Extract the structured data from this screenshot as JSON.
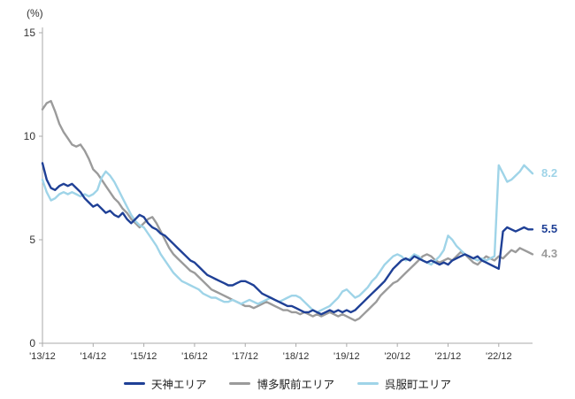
{
  "chart_data": {
    "type": "line",
    "title": "",
    "ylabel": "(%)",
    "ylim": [
      0,
      15
    ],
    "y_ticks": [
      0,
      5,
      10,
      15
    ],
    "x_tick_labels": [
      "'13/12",
      "'14/12",
      "'15/12",
      "'16/12",
      "'17/12",
      "'18/12",
      "'19/12",
      "'20/12",
      "'21/12",
      "'22/12"
    ],
    "x_unit": "month",
    "x_start": "2013/12",
    "tick_every": 12,
    "grid": false,
    "legend_position": "bottom",
    "series": [
      {
        "name": "天神エリア",
        "color": "#1f4096",
        "end_label": "5.5",
        "values": [
          8.7,
          7.9,
          7.5,
          7.4,
          7.6,
          7.7,
          7.6,
          7.7,
          7.5,
          7.3,
          7.0,
          6.8,
          6.6,
          6.7,
          6.5,
          6.3,
          6.4,
          6.2,
          6.1,
          6.3,
          6.0,
          5.8,
          6.0,
          6.2,
          6.1,
          5.8,
          5.6,
          5.5,
          5.3,
          5.2,
          5.0,
          4.8,
          4.6,
          4.4,
          4.2,
          4.0,
          3.9,
          3.7,
          3.5,
          3.3,
          3.2,
          3.1,
          3.0,
          2.9,
          2.8,
          2.8,
          2.9,
          3.0,
          3.0,
          2.9,
          2.8,
          2.6,
          2.4,
          2.3,
          2.2,
          2.1,
          2.0,
          1.9,
          1.8,
          1.8,
          1.7,
          1.6,
          1.5,
          1.5,
          1.6,
          1.5,
          1.4,
          1.5,
          1.6,
          1.5,
          1.6,
          1.5,
          1.6,
          1.5,
          1.6,
          1.8,
          2.0,
          2.2,
          2.4,
          2.6,
          2.8,
          3.0,
          3.3,
          3.6,
          3.8,
          4.0,
          4.1,
          4.0,
          4.2,
          4.1,
          4.0,
          3.9,
          4.0,
          3.9,
          3.8,
          3.9,
          3.8,
          4.0,
          4.1,
          4.2,
          4.3,
          4.2,
          4.1,
          4.2,
          4.0,
          3.9,
          3.8,
          3.7,
          3.6,
          5.4,
          5.6,
          5.5,
          5.4,
          5.5,
          5.6,
          5.5,
          5.5
        ]
      },
      {
        "name": "博多駅前エリア",
        "color": "#9b9b9b",
        "end_label": "4.3",
        "values": [
          11.3,
          11.6,
          11.7,
          11.2,
          10.6,
          10.2,
          9.9,
          9.6,
          9.5,
          9.6,
          9.3,
          8.9,
          8.4,
          8.2,
          7.9,
          7.6,
          7.3,
          7.0,
          6.8,
          6.5,
          6.3,
          6.0,
          5.8,
          5.6,
          5.8,
          6.0,
          6.1,
          5.8,
          5.4,
          5.0,
          4.6,
          4.3,
          4.1,
          3.9,
          3.7,
          3.5,
          3.4,
          3.2,
          3.0,
          2.8,
          2.6,
          2.5,
          2.4,
          2.3,
          2.2,
          2.1,
          2.0,
          1.9,
          1.8,
          1.8,
          1.7,
          1.8,
          1.9,
          2.0,
          1.9,
          1.8,
          1.7,
          1.6,
          1.6,
          1.5,
          1.5,
          1.4,
          1.5,
          1.4,
          1.3,
          1.4,
          1.3,
          1.4,
          1.5,
          1.4,
          1.3,
          1.4,
          1.3,
          1.2,
          1.1,
          1.2,
          1.4,
          1.6,
          1.8,
          2.0,
          2.3,
          2.5,
          2.7,
          2.9,
          3.0,
          3.2,
          3.4,
          3.6,
          3.8,
          4.0,
          4.2,
          4.3,
          4.2,
          4.0,
          3.9,
          4.0,
          4.1,
          4.0,
          4.2,
          4.4,
          4.3,
          4.1,
          3.9,
          3.8,
          4.0,
          4.2,
          4.1,
          4.0,
          4.2,
          4.1,
          4.3,
          4.5,
          4.4,
          4.6,
          4.5,
          4.4,
          4.3
        ]
      },
      {
        "name": "呉服町エリア",
        "color": "#9fd4e8",
        "end_label": "8.2",
        "values": [
          7.9,
          7.3,
          6.9,
          7.0,
          7.2,
          7.3,
          7.2,
          7.3,
          7.2,
          7.1,
          7.2,
          7.1,
          7.2,
          7.4,
          8.0,
          8.3,
          8.1,
          7.8,
          7.4,
          7.0,
          6.6,
          6.2,
          5.9,
          5.7,
          5.6,
          5.3,
          5.0,
          4.7,
          4.3,
          4.0,
          3.7,
          3.4,
          3.2,
          3.0,
          2.9,
          2.8,
          2.7,
          2.6,
          2.4,
          2.3,
          2.2,
          2.2,
          2.1,
          2.0,
          2.0,
          2.1,
          2.0,
          1.9,
          2.0,
          2.1,
          2.0,
          1.9,
          2.0,
          2.1,
          2.2,
          2.1,
          2.0,
          2.1,
          2.2,
          2.3,
          2.3,
          2.2,
          2.0,
          1.8,
          1.6,
          1.5,
          1.6,
          1.7,
          1.8,
          2.0,
          2.2,
          2.5,
          2.6,
          2.4,
          2.2,
          2.3,
          2.5,
          2.7,
          3.0,
          3.2,
          3.5,
          3.8,
          4.0,
          4.2,
          4.3,
          4.2,
          4.0,
          4.1,
          4.3,
          4.2,
          4.0,
          3.9,
          3.8,
          4.0,
          4.2,
          4.5,
          5.2,
          5.0,
          4.7,
          4.5,
          4.3,
          4.2,
          4.1,
          4.0,
          4.1,
          4.0,
          4.1,
          4.2,
          8.6,
          8.2,
          7.8,
          7.9,
          8.1,
          8.3,
          8.6,
          8.4,
          8.2
        ]
      }
    ]
  }
}
